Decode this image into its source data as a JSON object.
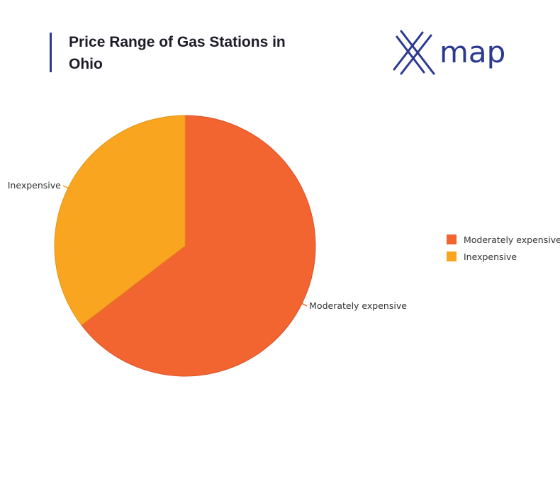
{
  "header": {
    "title": "Price Range of Gas Stations in Ohio",
    "logo_text": "map",
    "logo_icon": "x-map-logo-icon"
  },
  "colors": {
    "accent": "#2b3990",
    "moderately_expensive": "#f26430",
    "inexpensive": "#f9a51f"
  },
  "chart_data": {
    "type": "pie",
    "title": "Price Range of Gas Stations in Ohio",
    "categories": [
      "Moderately expensive",
      "Inexpensive"
    ],
    "values": [
      64.6,
      35.4
    ],
    "colors": [
      "#f26430",
      "#f9a51f"
    ],
    "legend_position": "right"
  }
}
